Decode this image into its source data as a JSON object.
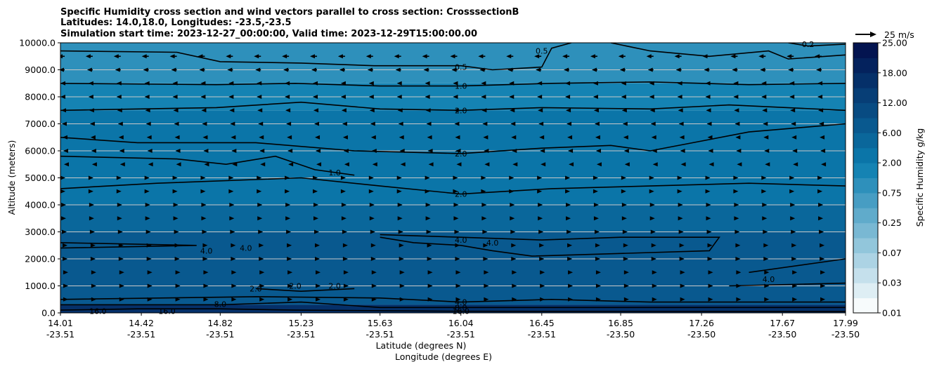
{
  "chart_data": {
    "type": "heatmap",
    "title_lines": [
      "Specific Humidity cross section and wind vectors parallel to cross section: CrosssectionB",
      "Latitudes: 14.0,18.0, Longitudes: -23.5,-23.5",
      "Simulation start time: 2023-12-27_00:00:00, Valid time: 2023-12-29T15:00:00.00"
    ],
    "ylabel": "Altitude (meters)",
    "xlabel_lines": [
      "Latitude (degrees N)",
      "Longitude (degrees E)"
    ],
    "ylim": [
      0,
      10000
    ],
    "y_ticks": [
      "0.0",
      "1000.0",
      "2000.0",
      "3000.0",
      "4000.0",
      "5000.0",
      "6000.0",
      "7000.0",
      "8000.0",
      "9000.0",
      "10000.0"
    ],
    "x_ticks": [
      {
        "lat": "14.01",
        "lon": "-23.51"
      },
      {
        "lat": "14.42",
        "lon": "-23.51"
      },
      {
        "lat": "14.82",
        "lon": "-23.51"
      },
      {
        "lat": "15.23",
        "lon": "-23.51"
      },
      {
        "lat": "15.63",
        "lon": "-23.51"
      },
      {
        "lat": "16.04",
        "lon": "-23.51"
      },
      {
        "lat": "16.45",
        "lon": "-23.51"
      },
      {
        "lat": "16.85",
        "lon": "-23.50"
      },
      {
        "lat": "17.26",
        "lon": "-23.50"
      },
      {
        "lat": "17.67",
        "lon": "-23.50"
      },
      {
        "lat": "17.99",
        "lon": "-23.50"
      }
    ],
    "colorbar": {
      "label": "Specific Humidity g/kg",
      "levels": [
        0.01,
        0.02,
        0.03,
        0.05,
        0.07,
        0.1,
        0.25,
        0.5,
        0.75,
        1.0,
        2.0,
        4.0,
        6.0,
        8.0,
        12.0,
        16.0,
        18.0,
        20.0,
        25.0
      ],
      "tick_labels": [
        "0.01",
        "0.03",
        "0.07",
        "0.25",
        "0.75",
        "2.00",
        "6.00",
        "12.00",
        "18.00",
        "25.00"
      ]
    },
    "humidity_bands": [
      {
        "y_from": 0,
        "y_to": 300,
        "value": 16
      },
      {
        "y_from": 300,
        "y_to": 3000,
        "value": 6
      },
      {
        "y_from": 3000,
        "y_to": 4000,
        "value": 4
      },
      {
        "y_from": 4000,
        "y_to": 6000,
        "value": 2.5
      },
      {
        "y_from": 6000,
        "y_to": 7500,
        "value": 2.0
      },
      {
        "y_from": 7500,
        "y_to": 8500,
        "value": 1.0
      },
      {
        "y_from": 8500,
        "y_to": 10000,
        "value": 0.75
      }
    ],
    "contours": [
      {
        "level": "0.2",
        "points": [
          [
            17.7,
            10000
          ],
          [
            17.8,
            9880
          ],
          [
            17.99,
            9950
          ]
        ]
      },
      {
        "level": "0.5",
        "points": [
          [
            14.01,
            9700
          ],
          [
            14.6,
            9650
          ],
          [
            14.82,
            9300
          ],
          [
            15.23,
            9250
          ],
          [
            15.6,
            9150
          ],
          [
            16.04,
            9150
          ],
          [
            16.2,
            9000
          ],
          [
            16.45,
            9100
          ],
          [
            16.5,
            9800
          ],
          [
            16.6,
            10000
          ]
        ]
      },
      {
        "level": "0.5",
        "points": [
          [
            16.8,
            10000
          ],
          [
            17.0,
            9700
          ],
          [
            17.3,
            9500
          ],
          [
            17.6,
            9700
          ],
          [
            17.7,
            9400
          ],
          [
            17.99,
            9550
          ]
        ]
      },
      {
        "level": "1.0",
        "points": [
          [
            14.01,
            8500
          ],
          [
            14.8,
            8450
          ],
          [
            15.2,
            8500
          ],
          [
            15.63,
            8400
          ],
          [
            16.04,
            8400
          ],
          [
            16.5,
            8500
          ],
          [
            17.0,
            8550
          ],
          [
            17.5,
            8450
          ],
          [
            17.99,
            8500
          ]
        ]
      },
      {
        "level": "2.0",
        "points": [
          [
            14.01,
            7500
          ],
          [
            14.8,
            7600
          ],
          [
            15.23,
            7800
          ],
          [
            15.63,
            7550
          ],
          [
            16.04,
            7500
          ],
          [
            16.45,
            7600
          ],
          [
            17.0,
            7550
          ],
          [
            17.4,
            7700
          ],
          [
            17.99,
            7500
          ]
        ]
      },
      {
        "level": "2.0",
        "points": [
          [
            14.01,
            6500
          ],
          [
            14.4,
            6300
          ],
          [
            15.0,
            6300
          ],
          [
            15.5,
            6000
          ],
          [
            16.04,
            5900
          ],
          [
            16.45,
            6100
          ],
          [
            16.8,
            6200
          ],
          [
            17.0,
            6000
          ],
          [
            17.5,
            6700
          ],
          [
            17.99,
            7000
          ]
        ]
      },
      {
        "level": "1.0",
        "points": [
          [
            14.01,
            5800
          ],
          [
            14.6,
            5700
          ],
          [
            14.85,
            5500
          ],
          [
            15.1,
            5800
          ],
          [
            15.3,
            5300
          ],
          [
            15.5,
            5100
          ]
        ]
      },
      {
        "level": "2.0",
        "points": [
          [
            14.01,
            4600
          ],
          [
            14.5,
            4800
          ],
          [
            15.23,
            5000
          ],
          [
            15.63,
            4700
          ],
          [
            16.04,
            4400
          ],
          [
            16.5,
            4600
          ],
          [
            17.0,
            4700
          ],
          [
            17.5,
            4800
          ],
          [
            17.99,
            4700
          ]
        ]
      },
      {
        "level": "4.0",
        "points": [
          [
            15.63,
            2900
          ],
          [
            16.04,
            2800
          ],
          [
            16.45,
            2700
          ],
          [
            16.85,
            2800
          ],
          [
            17.26,
            2800
          ],
          [
            17.35,
            2800
          ],
          [
            17.3,
            2300
          ],
          [
            16.85,
            2200
          ],
          [
            16.4,
            2100
          ],
          [
            16.2,
            2300
          ],
          [
            16.04,
            2500
          ],
          [
            15.8,
            2600
          ],
          [
            15.63,
            2800
          ]
        ]
      },
      {
        "level": "4.0",
        "points": [
          [
            17.5,
            1500
          ],
          [
            17.99,
            2000
          ]
        ]
      },
      {
        "level": "4.0",
        "points": [
          [
            17.4,
            1000
          ],
          [
            17.99,
            1100
          ]
        ]
      },
      {
        "level": "4.0",
        "points": [
          [
            14.01,
            2600
          ],
          [
            14.7,
            2500
          ],
          [
            14.01,
            2400
          ]
        ]
      },
      {
        "level": "2.0",
        "points": [
          [
            15.0,
            900
          ],
          [
            15.23,
            800
          ],
          [
            15.5,
            900
          ]
        ]
      },
      {
        "level": "4.0",
        "points": [
          [
            14.01,
            500
          ],
          [
            15.0,
            600
          ],
          [
            15.63,
            550
          ],
          [
            16.04,
            400
          ],
          [
            16.5,
            500
          ],
          [
            17.0,
            400
          ],
          [
            17.5,
            400
          ],
          [
            17.99,
            400
          ]
        ]
      },
      {
        "level": "8.0",
        "points": [
          [
            14.01,
            300
          ],
          [
            14.82,
            300
          ],
          [
            15.23,
            400
          ],
          [
            15.63,
            200
          ],
          [
            16.04,
            200
          ],
          [
            16.5,
            200
          ],
          [
            17.0,
            200
          ],
          [
            17.99,
            200
          ]
        ]
      },
      {
        "level": "16.0",
        "points": [
          [
            14.01,
            100
          ],
          [
            14.4,
            150
          ],
          [
            14.82,
            150
          ],
          [
            15.2,
            100
          ],
          [
            15.63,
            80
          ],
          [
            16.04,
            60
          ],
          [
            17.99,
            50
          ]
        ]
      }
    ],
    "contour_labels": [
      {
        "text": "0.2",
        "x": 17.8,
        "y": 9950
      },
      {
        "text": "0.5",
        "x": 16.04,
        "y": 9100
      },
      {
        "text": "0.5",
        "x": 16.45,
        "y": 9700
      },
      {
        "text": "1.0",
        "x": 16.04,
        "y": 8400
      },
      {
        "text": "2.0",
        "x": 16.04,
        "y": 7500
      },
      {
        "text": "2.0",
        "x": 16.04,
        "y": 5900
      },
      {
        "text": "1.0",
        "x": 15.4,
        "y": 5200
      },
      {
        "text": "2.0",
        "x": 16.04,
        "y": 4400
      },
      {
        "text": "4.0",
        "x": 16.04,
        "y": 2700
      },
      {
        "text": "4.0",
        "x": 16.2,
        "y": 2600
      },
      {
        "text": "4.0",
        "x": 14.95,
        "y": 2400
      },
      {
        "text": "4.0",
        "x": 14.75,
        "y": 2300
      },
      {
        "text": "4.0",
        "x": 17.6,
        "y": 1250
      },
      {
        "text": "2.0",
        "x": 15.2,
        "y": 1000
      },
      {
        "text": "2.0",
        "x": 15.4,
        "y": 1000
      },
      {
        "text": "2.0",
        "x": 15.0,
        "y": 900
      },
      {
        "text": "8.0",
        "x": 14.82,
        "y": 320
      },
      {
        "text": "16.0",
        "x": 14.2,
        "y": 60
      },
      {
        "text": "16.0",
        "x": 14.55,
        "y": 60
      },
      {
        "text": "4.0",
        "x": 16.04,
        "y": 400
      },
      {
        "text": "8.0",
        "x": 16.04,
        "y": 200
      },
      {
        "text": "16.0",
        "x": 16.04,
        "y": 60
      }
    ],
    "wind_vectors": {
      "reference_label": "25 m/s",
      "reference_speed": 25,
      "levels": [
        {
          "y": 9500,
          "u": -10
        },
        {
          "y": 9000,
          "u": -8
        },
        {
          "y": 8500,
          "u": -6
        },
        {
          "y": 8000,
          "u": -6
        },
        {
          "y": 7500,
          "u": -5
        },
        {
          "y": 7000,
          "u": -4
        },
        {
          "y": 6500,
          "u": -3
        },
        {
          "y": 6000,
          "u": -2
        },
        {
          "y": 5500,
          "u": -1
        },
        {
          "y": 5000,
          "u": 1
        },
        {
          "y": 4500,
          "u": 1
        },
        {
          "y": 4000,
          "u": 2
        },
        {
          "y": 3500,
          "u": 2
        },
        {
          "y": 3000,
          "u": 3
        },
        {
          "y": 2500,
          "u": 4
        },
        {
          "y": 2000,
          "u": 4
        },
        {
          "y": 1500,
          "u": 5
        },
        {
          "y": 1000,
          "u": 5
        },
        {
          "y": 500,
          "u": 5
        }
      ]
    },
    "grid": "horizontal"
  }
}
